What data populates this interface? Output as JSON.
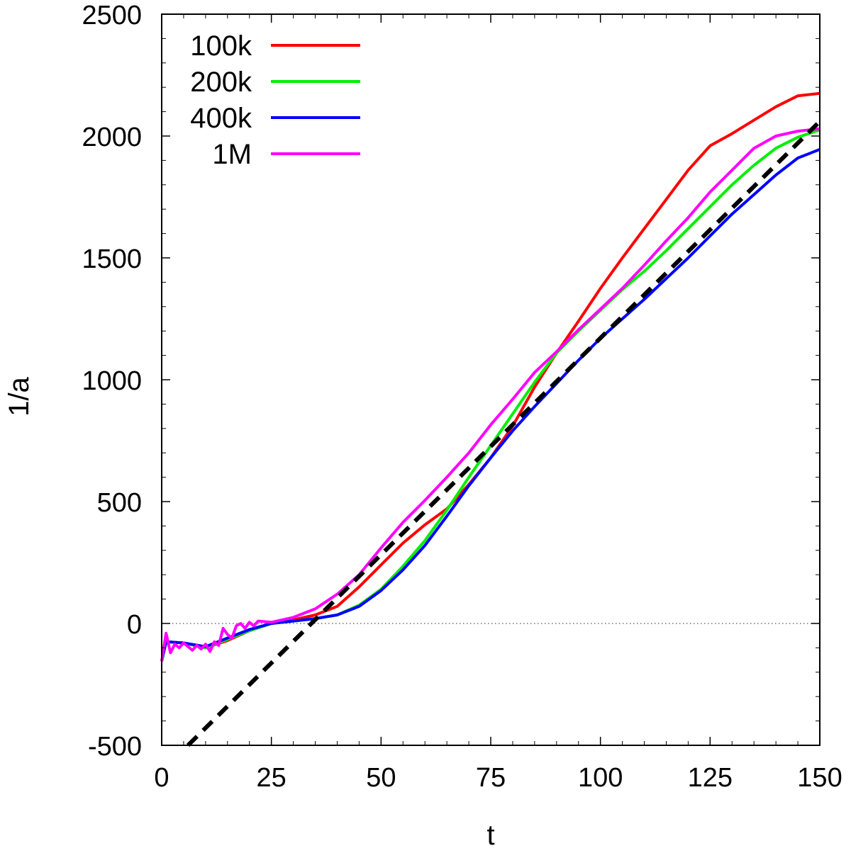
{
  "chart_data": {
    "type": "line",
    "xlabel": "t",
    "ylabel": "1/a",
    "xlim": [
      0,
      150
    ],
    "ylim": [
      -500,
      2500
    ],
    "xticks": [
      0,
      25,
      50,
      75,
      100,
      125,
      150
    ],
    "yticks": [
      -500,
      0,
      500,
      1000,
      1500,
      2000,
      2500
    ],
    "xtick_labels": [
      "0",
      "25",
      "50",
      "75",
      "100",
      "125",
      "150"
    ],
    "ytick_labels": [
      "-500",
      "0",
      "500",
      "1000",
      "1500",
      "2000",
      "2500"
    ],
    "grid": false,
    "zero_line": true,
    "legend_position": "top-left",
    "series": [
      {
        "name": "100k",
        "color": "#ff0000",
        "style": "solid",
        "points": [
          [
            0,
            -155
          ],
          [
            1,
            -75
          ],
          [
            5,
            -80
          ],
          [
            10,
            -100
          ],
          [
            15,
            -70
          ],
          [
            20,
            -30
          ],
          [
            25,
            0
          ],
          [
            30,
            15
          ],
          [
            35,
            35
          ],
          [
            40,
            70
          ],
          [
            45,
            150
          ],
          [
            50,
            240
          ],
          [
            55,
            330
          ],
          [
            60,
            405
          ],
          [
            65,
            470
          ],
          [
            70,
            570
          ],
          [
            75,
            680
          ],
          [
            80,
            810
          ],
          [
            85,
            970
          ],
          [
            90,
            1110
          ],
          [
            95,
            1240
          ],
          [
            100,
            1375
          ],
          [
            105,
            1500
          ],
          [
            110,
            1620
          ],
          [
            115,
            1740
          ],
          [
            120,
            1860
          ],
          [
            125,
            1960
          ],
          [
            130,
            2010
          ],
          [
            135,
            2065
          ],
          [
            140,
            2120
          ],
          [
            145,
            2165
          ],
          [
            150,
            2175
          ]
        ]
      },
      {
        "name": "200k",
        "color": "#00ee00",
        "style": "solid",
        "points": [
          [
            0,
            -155
          ],
          [
            1,
            -75
          ],
          [
            5,
            -80
          ],
          [
            10,
            -100
          ],
          [
            15,
            -65
          ],
          [
            20,
            -30
          ],
          [
            25,
            0
          ],
          [
            30,
            10
          ],
          [
            35,
            20
          ],
          [
            40,
            35
          ],
          [
            45,
            75
          ],
          [
            50,
            140
          ],
          [
            55,
            235
          ],
          [
            60,
            340
          ],
          [
            65,
            465
          ],
          [
            70,
            600
          ],
          [
            75,
            730
          ],
          [
            80,
            860
          ],
          [
            85,
            990
          ],
          [
            90,
            1110
          ],
          [
            95,
            1200
          ],
          [
            100,
            1285
          ],
          [
            105,
            1370
          ],
          [
            110,
            1445
          ],
          [
            115,
            1530
          ],
          [
            120,
            1620
          ],
          [
            125,
            1710
          ],
          [
            130,
            1800
          ],
          [
            135,
            1880
          ],
          [
            140,
            1950
          ],
          [
            145,
            1995
          ],
          [
            150,
            2025
          ]
        ]
      },
      {
        "name": "400k",
        "color": "#0000ff",
        "style": "solid",
        "points": [
          [
            0,
            -155
          ],
          [
            1,
            -75
          ],
          [
            5,
            -80
          ],
          [
            10,
            -95
          ],
          [
            15,
            -60
          ],
          [
            20,
            -25
          ],
          [
            25,
            0
          ],
          [
            30,
            10
          ],
          [
            35,
            20
          ],
          [
            40,
            35
          ],
          [
            45,
            70
          ],
          [
            50,
            135
          ],
          [
            55,
            220
          ],
          [
            60,
            320
          ],
          [
            65,
            440
          ],
          [
            70,
            565
          ],
          [
            75,
            680
          ],
          [
            80,
            790
          ],
          [
            85,
            890
          ],
          [
            90,
            985
          ],
          [
            95,
            1080
          ],
          [
            100,
            1170
          ],
          [
            105,
            1250
          ],
          [
            110,
            1330
          ],
          [
            115,
            1415
          ],
          [
            120,
            1500
          ],
          [
            125,
            1590
          ],
          [
            130,
            1680
          ],
          [
            135,
            1760
          ],
          [
            140,
            1840
          ],
          [
            145,
            1910
          ],
          [
            150,
            1945
          ]
        ]
      },
      {
        "name": "1M",
        "color": "#ff00ff",
        "style": "solid",
        "points": [
          [
            0,
            -155
          ],
          [
            1,
            -40
          ],
          [
            2,
            -120
          ],
          [
            3,
            -85
          ],
          [
            4,
            -100
          ],
          [
            5,
            -80
          ],
          [
            6,
            -95
          ],
          [
            7,
            -110
          ],
          [
            8,
            -90
          ],
          [
            9,
            -105
          ],
          [
            10,
            -85
          ],
          [
            11,
            -115
          ],
          [
            12,
            -75
          ],
          [
            13,
            -90
          ],
          [
            14,
            -20
          ],
          [
            15,
            -45
          ],
          [
            16,
            -60
          ],
          [
            17,
            -10
          ],
          [
            18,
            0
          ],
          [
            19,
            -20
          ],
          [
            20,
            5
          ],
          [
            21,
            -10
          ],
          [
            22,
            10
          ],
          [
            25,
            5
          ],
          [
            30,
            25
          ],
          [
            35,
            60
          ],
          [
            40,
            120
          ],
          [
            45,
            200
          ],
          [
            50,
            310
          ],
          [
            55,
            415
          ],
          [
            60,
            505
          ],
          [
            65,
            600
          ],
          [
            70,
            700
          ],
          [
            75,
            815
          ],
          [
            80,
            920
          ],
          [
            85,
            1030
          ],
          [
            90,
            1115
          ],
          [
            95,
            1205
          ],
          [
            100,
            1290
          ],
          [
            105,
            1375
          ],
          [
            110,
            1470
          ],
          [
            115,
            1570
          ],
          [
            120,
            1665
          ],
          [
            125,
            1770
          ],
          [
            130,
            1860
          ],
          [
            135,
            1950
          ],
          [
            140,
            2000
          ],
          [
            145,
            2020
          ],
          [
            150,
            2030
          ]
        ]
      },
      {
        "name": "",
        "color": "#000000",
        "style": "dashed",
        "points": [
          [
            6,
            -500
          ],
          [
            150,
            2060
          ]
        ]
      }
    ]
  }
}
